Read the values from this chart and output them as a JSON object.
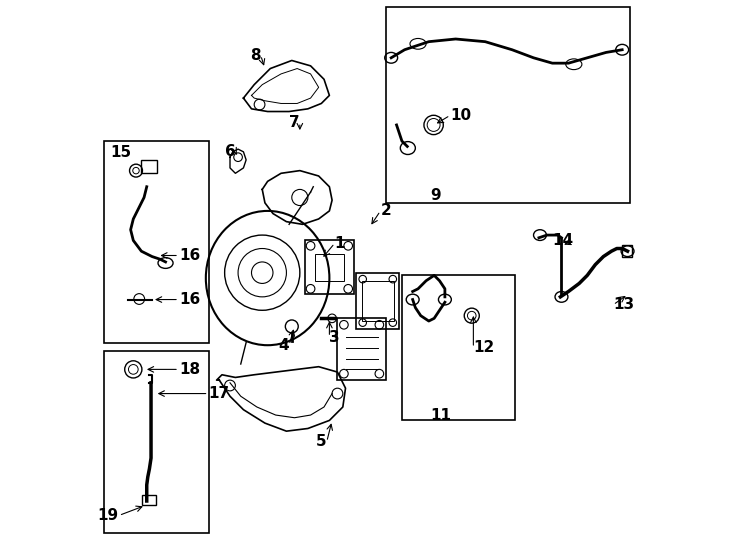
{
  "bg_color": "#ffffff",
  "line_color": "#000000",
  "label_color": "#000000",
  "font_size_label": 11
}
